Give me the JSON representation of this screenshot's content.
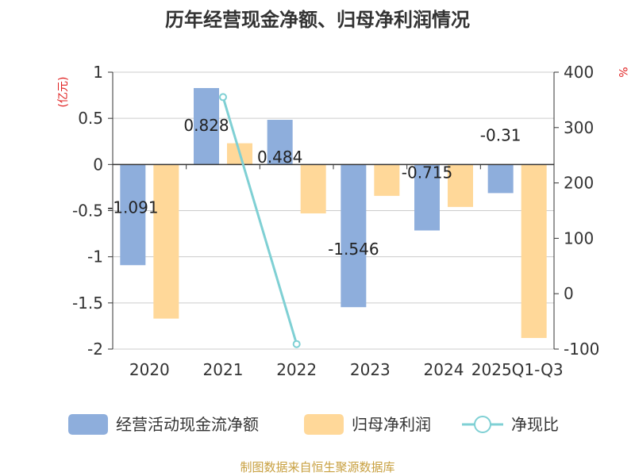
{
  "chart_data": {
    "type": "bar",
    "title": "历年经营现金净额、归母净利润情况",
    "categories": [
      "2020",
      "2021",
      "2022",
      "2023",
      "2024",
      "2025Q1-Q3"
    ],
    "y_left": {
      "unit": "(亿元)",
      "ylim": [
        -2,
        1
      ],
      "ticks": [
        "1",
        "0.5",
        "0",
        "-0.5",
        "-1",
        "-1.5",
        "-2"
      ],
      "tick_values": [
        1,
        0.5,
        0,
        -0.5,
        -1,
        -1.5,
        -2
      ]
    },
    "y_right": {
      "unit": "%",
      "ylim": [
        -100,
        400
      ],
      "ticks": [
        "400",
        "300",
        "200",
        "100",
        "0",
        "-100"
      ],
      "tick_values": [
        400,
        300,
        200,
        100,
        0,
        -100
      ]
    },
    "series": [
      {
        "name": "经营活动现金流净额",
        "axis": "left",
        "kind": "bar",
        "color": "#8eaedc",
        "values": [
          -1.091,
          0.828,
          0.484,
          -1.546,
          -0.715,
          -0.31
        ],
        "labels": [
          "-1.091",
          "0.828",
          "0.484",
          "-1.546",
          "-0.715",
          "-0.31"
        ]
      },
      {
        "name": "归母净利润",
        "axis": "left",
        "kind": "bar",
        "color": "#ffd899",
        "values": [
          -1.67,
          0.23,
          -0.53,
          -0.34,
          -0.46,
          -1.88
        ]
      },
      {
        "name": "净现比",
        "axis": "right",
        "kind": "line",
        "color": "#7fd0d4",
        "values": [
          null,
          355,
          -91,
          null,
          null,
          null
        ]
      }
    ],
    "grid": true,
    "legend": "bottom",
    "source": "制图数据来自恒生聚源数据库"
  }
}
